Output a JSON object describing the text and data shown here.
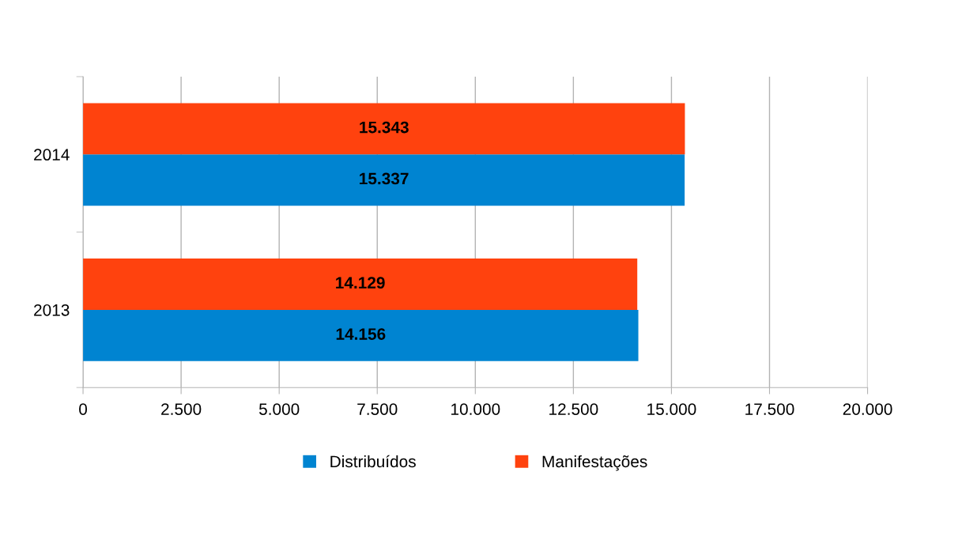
{
  "chart_data": {
    "type": "bar",
    "orientation": "horizontal",
    "categories": [
      "2014",
      "2013"
    ],
    "series": [
      {
        "name": "Distribuídos",
        "color": "#0084d1",
        "values": [
          15337,
          14156
        ],
        "value_labels": [
          "15.337",
          "14.156"
        ]
      },
      {
        "name": "Manifestações",
        "color": "#ff420e",
        "values": [
          15343,
          14129
        ],
        "value_labels": [
          "15.343",
          "14.129"
        ]
      }
    ],
    "xlim": [
      0,
      20000
    ],
    "xticks": [
      0,
      {
        "value": 2500,
        "label": "2.500"
      },
      {
        "value": 5000,
        "label": "5.000"
      },
      {
        "value": 7500,
        "label": "7.500"
      },
      {
        "value": 10000,
        "label": "10.000"
      },
      {
        "value": 12500,
        "label": "12.500"
      },
      {
        "value": 15000,
        "label": "15.000"
      },
      {
        "value": 17500,
        "label": "17.500"
      },
      {
        "value": 20000,
        "label": "20.000"
      }
    ],
    "grid": "x",
    "legend": "bottom"
  }
}
